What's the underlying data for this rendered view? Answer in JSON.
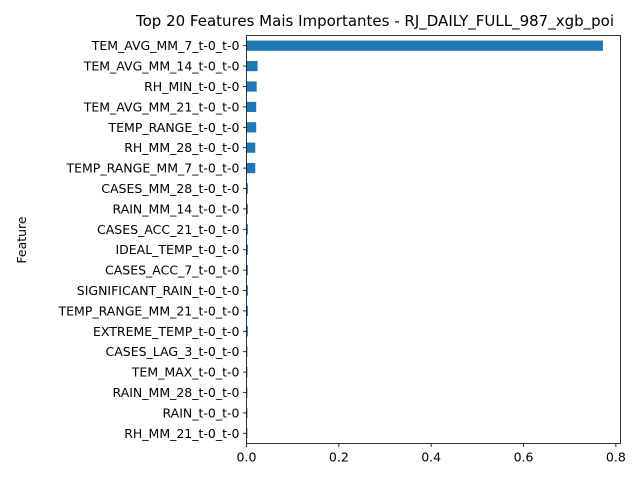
{
  "chart_data": {
    "type": "bar",
    "orientation": "horizontal",
    "title": "Top 20 Features Mais Importantes - RJ_DAILY_FULL_987_xgb_poi",
    "xlabel": "",
    "ylabel": "Feature",
    "xlim": [
      0,
      0.81
    ],
    "xticks": [
      0.0,
      0.2,
      0.4,
      0.6,
      0.8
    ],
    "xtick_labels": [
      "0.0",
      "0.2",
      "0.4",
      "0.6",
      "0.8"
    ],
    "grid": false,
    "bar_color": "#1f77b4",
    "categories": [
      "TEM_AVG_MM_7_t-0_t-0",
      "TEM_AVG_MM_14_t-0_t-0",
      "RH_MIN_t-0_t-0",
      "TEM_AVG_MM_21_t-0_t-0",
      "TEMP_RANGE_t-0_t-0",
      "RH_MM_28_t-0_t-0",
      "TEMP_RANGE_MM_7_t-0_t-0",
      "CASES_MM_28_t-0_t-0",
      "RAIN_MM_14_t-0_t-0",
      "CASES_ACC_21_t-0_t-0",
      "IDEAL_TEMP_t-0_t-0",
      "CASES_ACC_7_t-0_t-0",
      "SIGNIFICANT_RAIN_t-0_t-0",
      "TEMP_RANGE_MM_21_t-0_t-0",
      "EXTREME_TEMP_t-0_t-0",
      "CASES_LAG_3_t-0_t-0",
      "TEM_MAX_t-0_t-0",
      "RAIN_MM_28_t-0_t-0",
      "RAIN_t-0_t-0",
      "RH_MM_21_t-0_t-0"
    ],
    "values": [
      0.772,
      0.024,
      0.022,
      0.021,
      0.021,
      0.019,
      0.019,
      0.003,
      0.003,
      0.003,
      0.003,
      0.003,
      0.003,
      0.003,
      0.003,
      0.002,
      0.002,
      0.002,
      0.002,
      0.002
    ]
  }
}
